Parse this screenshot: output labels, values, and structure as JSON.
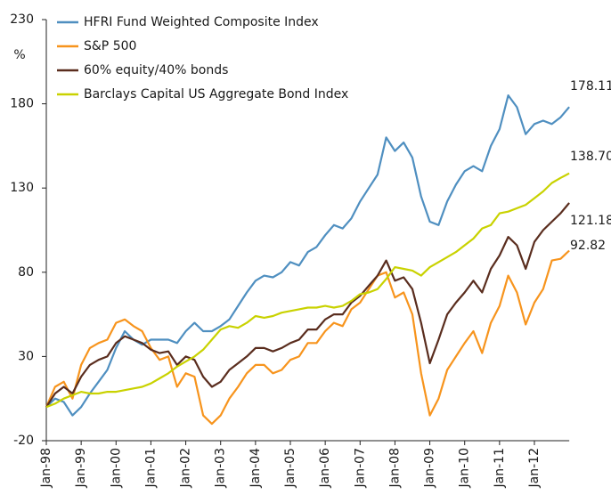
{
  "chart_data": {
    "type": "line",
    "y_label": "%",
    "ylim": [
      -20,
      230
    ],
    "yticks": [
      -20,
      30,
      80,
      130,
      180,
      230
    ],
    "categories": [
      "Jan-98",
      null,
      null,
      null,
      "Jan-99",
      null,
      null,
      null,
      "Jan-00",
      null,
      null,
      null,
      "Jan-01",
      null,
      null,
      null,
      "Jan-02",
      null,
      null,
      null,
      "Jan-03",
      null,
      null,
      null,
      "Jan-04",
      null,
      null,
      null,
      "Jan-05",
      null,
      null,
      null,
      "Jan-06",
      null,
      null,
      null,
      "Jan-07",
      null,
      null,
      null,
      "Jan-08",
      null,
      null,
      null,
      "Jan-09",
      null,
      null,
      null,
      "Jan-10",
      null,
      null,
      null,
      "Jan-11",
      null,
      null,
      null,
      "Jan-12",
      null,
      null,
      null,
      null
    ],
    "series": [
      {
        "name": "HFRI Fund Weighted Composite Index",
        "color": "#4f8fc0",
        "last_label": "178.11",
        "values": [
          0,
          5,
          3,
          -5,
          0,
          8,
          15,
          22,
          35,
          45,
          40,
          37,
          40,
          40,
          40,
          38,
          45,
          50,
          45,
          45,
          48,
          52,
          60,
          68,
          75,
          78,
          77,
          80,
          86,
          84,
          92,
          95,
          102,
          108,
          106,
          112,
          122,
          130,
          138,
          160,
          152,
          157,
          148,
          125,
          110,
          108,
          122,
          132,
          140,
          143,
          140,
          155,
          165,
          185,
          178,
          162,
          168,
          170,
          168,
          172,
          178.11
        ]
      },
      {
        "name": "S&P 500",
        "color": "#f7941d",
        "last_label": "92.82",
        "values": [
          0,
          12,
          15,
          5,
          25,
          35,
          38,
          40,
          50,
          52,
          48,
          45,
          35,
          28,
          30,
          12,
          20,
          18,
          -5,
          -10,
          -5,
          5,
          12,
          20,
          25,
          25,
          20,
          22,
          28,
          30,
          38,
          38,
          45,
          50,
          48,
          58,
          62,
          70,
          78,
          80,
          65,
          68,
          55,
          20,
          -5,
          5,
          22,
          30,
          38,
          45,
          32,
          50,
          60,
          78,
          68,
          49,
          62,
          70,
          87,
          88,
          92.82
        ]
      },
      {
        "name": "60% equity/40% bonds",
        "color": "#5a2d1e",
        "last_label": "121.18",
        "values": [
          0,
          8,
          12,
          8,
          18,
          25,
          28,
          30,
          38,
          42,
          40,
          38,
          34,
          32,
          33,
          25,
          30,
          28,
          18,
          12,
          15,
          22,
          26,
          30,
          35,
          35,
          33,
          35,
          38,
          40,
          46,
          46,
          52,
          55,
          55,
          62,
          66,
          72,
          78,
          87,
          75,
          77,
          70,
          50,
          26,
          40,
          55,
          62,
          68,
          75,
          68,
          82,
          90,
          101,
          96,
          82,
          98,
          105,
          110,
          115,
          121.18
        ]
      },
      {
        "name": "Barclays Capital US Aggregate Bond Index",
        "color": "#c9d200",
        "last_label": "138.70",
        "values": [
          0,
          2,
          5,
          7,
          9,
          8,
          8,
          9,
          9,
          10,
          11,
          12,
          14,
          17,
          20,
          24,
          27,
          30,
          34,
          40,
          46,
          48,
          47,
          50,
          54,
          53,
          54,
          56,
          57,
          58,
          59,
          59,
          60,
          59,
          60,
          63,
          67,
          68,
          70,
          76,
          83,
          82,
          81,
          78,
          83,
          86,
          89,
          92,
          96,
          100,
          106,
          108,
          115,
          116,
          118,
          120,
          124,
          128,
          133,
          136,
          138.7
        ]
      }
    ]
  }
}
